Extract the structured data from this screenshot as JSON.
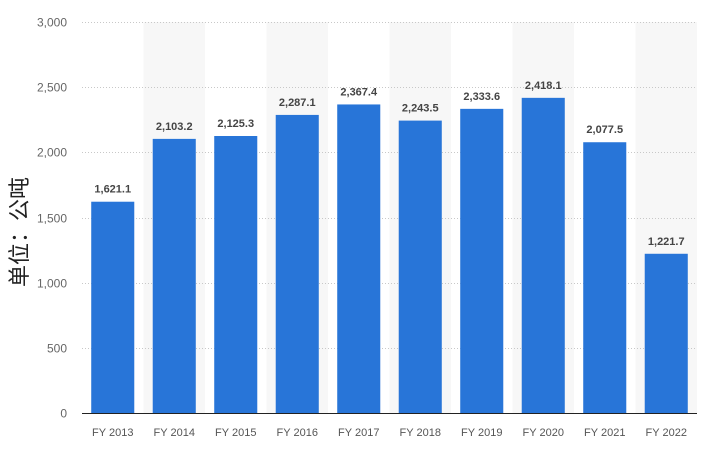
{
  "chart_data": {
    "type": "bar",
    "title": "",
    "xlabel": "",
    "ylabel": "单位：公吨",
    "categories": [
      "FY 2013",
      "FY 2014",
      "FY 2015",
      "FY 2016",
      "FY 2017",
      "FY 2018",
      "FY 2019",
      "FY 2020",
      "FY 2021",
      "FY 2022"
    ],
    "values": [
      1621.1,
      2103.2,
      2125.3,
      2287.1,
      2367.4,
      2243.5,
      2333.6,
      2418.1,
      2077.5,
      1221.7
    ],
    "data_labels": [
      "1,621.1",
      "2,103.2",
      "2,125.3",
      "2,287.1",
      "2,367.4",
      "2,243.5",
      "2,333.6",
      "2,418.1",
      "2,077.5",
      "1,221.7"
    ],
    "ylim": [
      0,
      3000
    ],
    "yticks": [
      0,
      500,
      1000,
      1500,
      2000,
      2500,
      3000
    ],
    "ytick_labels": [
      "0",
      "500",
      "1,000",
      "1,500",
      "2,000",
      "2,500",
      "3,000"
    ],
    "grid": true,
    "legend": "none",
    "colors": {
      "bar": "#2875d8",
      "band": "#f7f7f7",
      "grid": "#c8c8c8"
    }
  }
}
